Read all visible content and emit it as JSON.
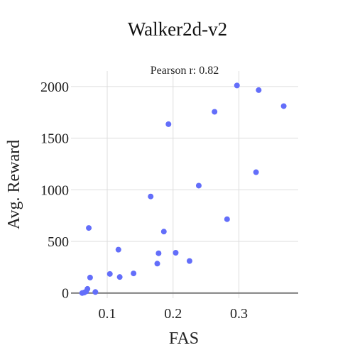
{
  "chart_data": {
    "type": "scatter",
    "title": "Walker2d-v2",
    "xlabel": "FAS",
    "ylabel": "Avg. Reward",
    "annotation": "Pearson r: 0.82",
    "xlim": [
      0.045,
      0.39
    ],
    "ylim": [
      -50,
      2150
    ],
    "xticks": [
      0.1,
      0.2,
      0.3
    ],
    "xtick_labels": [
      "0.1",
      "0.2",
      "0.3"
    ],
    "yticks": [
      0,
      500,
      1000,
      1500,
      2000
    ],
    "ytick_labels": [
      "0",
      "500",
      "1000",
      "1500",
      "2000"
    ],
    "grid": true,
    "legend": "none",
    "colors": {
      "marker": "#636efa",
      "grid": "#dddddd",
      "zeroline": "#777777"
    },
    "points": [
      {
        "x": 0.062,
        "y": 0
      },
      {
        "x": 0.065,
        "y": 5
      },
      {
        "x": 0.068,
        "y": 15
      },
      {
        "x": 0.07,
        "y": 40
      },
      {
        "x": 0.082,
        "y": 10
      },
      {
        "x": 0.072,
        "y": 630
      },
      {
        "x": 0.074,
        "y": 150
      },
      {
        "x": 0.104,
        "y": 185
      },
      {
        "x": 0.117,
        "y": 420
      },
      {
        "x": 0.119,
        "y": 155
      },
      {
        "x": 0.14,
        "y": 190
      },
      {
        "x": 0.166,
        "y": 935
      },
      {
        "x": 0.176,
        "y": 285
      },
      {
        "x": 0.178,
        "y": 385
      },
      {
        "x": 0.186,
        "y": 595
      },
      {
        "x": 0.193,
        "y": 1635
      },
      {
        "x": 0.204,
        "y": 390
      },
      {
        "x": 0.225,
        "y": 310
      },
      {
        "x": 0.239,
        "y": 1040
      },
      {
        "x": 0.263,
        "y": 1755
      },
      {
        "x": 0.282,
        "y": 715
      },
      {
        "x": 0.297,
        "y": 2010
      },
      {
        "x": 0.326,
        "y": 1170
      },
      {
        "x": 0.33,
        "y": 1965
      },
      {
        "x": 0.368,
        "y": 1810
      }
    ]
  }
}
